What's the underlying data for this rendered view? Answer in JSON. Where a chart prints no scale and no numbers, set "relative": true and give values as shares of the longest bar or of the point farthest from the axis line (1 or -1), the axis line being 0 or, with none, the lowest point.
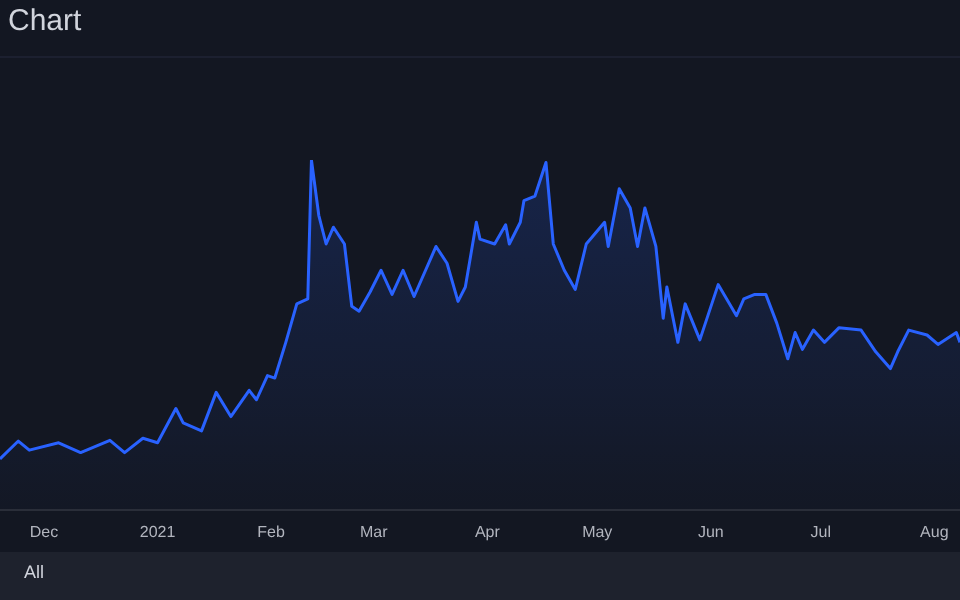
{
  "chart_data": {
    "type": "area",
    "title": "Chart",
    "relative": true,
    "color": "#2962ff",
    "annotations": [
      "All"
    ],
    "x": [
      "2020-11-19",
      "2020-11-24",
      "2020-11-27",
      "2020-12-05",
      "2020-12-11",
      "2020-12-19",
      "2020-12-23",
      "2020-12-28",
      "2021-01-01",
      "2021-01-06",
      "2021-01-08",
      "2021-01-13",
      "2021-01-17",
      "2021-01-21",
      "2021-01-26",
      "2021-01-28",
      "2021-01-31",
      "2021-02-02",
      "2021-02-05",
      "2021-02-08",
      "2021-02-11",
      "2021-02-12",
      "2021-02-14",
      "2021-02-16",
      "2021-02-18",
      "2021-02-21",
      "2021-02-23",
      "2021-02-25",
      "2021-02-28",
      "2021-03-03",
      "2021-03-06",
      "2021-03-09",
      "2021-03-12",
      "2021-03-18",
      "2021-03-21",
      "2021-03-24",
      "2021-03-26",
      "2021-03-29",
      "2021-03-30",
      "2021-04-03",
      "2021-04-06",
      "2021-04-07",
      "2021-04-10",
      "2021-04-11",
      "2021-04-14",
      "2021-04-17",
      "2021-04-19",
      "2021-04-22",
      "2021-04-25",
      "2021-04-28",
      "2021-05-03",
      "2021-05-04",
      "2021-05-07",
      "2021-05-10",
      "2021-05-12",
      "2021-05-14",
      "2021-05-17",
      "2021-05-19",
      "2021-05-20",
      "2021-05-23",
      "2021-05-25",
      "2021-05-29",
      "2021-06-03",
      "2021-06-08",
      "2021-06-10",
      "2021-06-13",
      "2021-06-16",
      "2021-06-19",
      "2021-06-22",
      "2021-06-24",
      "2021-06-26",
      "2021-06-29",
      "2021-07-02",
      "2021-07-06",
      "2021-07-12",
      "2021-07-16",
      "2021-07-20",
      "2021-07-22",
      "2021-07-25",
      "2021-07-30",
      "2021-08-02",
      "2021-08-07",
      "2021-08-08"
    ],
    "values": [
      0.146,
      0.197,
      0.171,
      0.192,
      0.164,
      0.199,
      0.164,
      0.205,
      0.192,
      0.29,
      0.249,
      0.226,
      0.336,
      0.267,
      0.342,
      0.315,
      0.384,
      0.377,
      0.479,
      0.589,
      0.603,
      1.0,
      0.842,
      0.76,
      0.808,
      0.76,
      0.582,
      0.568,
      0.623,
      0.685,
      0.616,
      0.685,
      0.61,
      0.753,
      0.705,
      0.596,
      0.637,
      0.822,
      0.774,
      0.76,
      0.815,
      0.76,
      0.822,
      0.884,
      0.897,
      0.993,
      0.76,
      0.685,
      0.63,
      0.76,
      0.822,
      0.753,
      0.918,
      0.863,
      0.753,
      0.863,
      0.753,
      0.548,
      0.637,
      0.479,
      0.589,
      0.486,
      0.644,
      0.555,
      0.603,
      0.616,
      0.616,
      0.534,
      0.432,
      0.507,
      0.459,
      0.514,
      0.479,
      0.521,
      0.514,
      0.452,
      0.404,
      0.452,
      0.514,
      0.5,
      0.473,
      0.507,
      0.479
    ],
    "xlim": [
      "2020-11-19",
      "2021-08-08"
    ],
    "xticks": [
      {
        "value": "2020-12-01",
        "label": "Dec"
      },
      {
        "value": "2021-01-01",
        "label": "2021"
      },
      {
        "value": "2021-02-01",
        "label": "Feb"
      },
      {
        "value": "2021-03-01",
        "label": "Mar"
      },
      {
        "value": "2021-04-01",
        "label": "Apr"
      },
      {
        "value": "2021-05-01",
        "label": "May"
      },
      {
        "value": "2021-06-01",
        "label": "Jun"
      },
      {
        "value": "2021-07-01",
        "label": "Jul"
      },
      {
        "value": "2021-08-01",
        "label": "Aug"
      }
    ]
  }
}
